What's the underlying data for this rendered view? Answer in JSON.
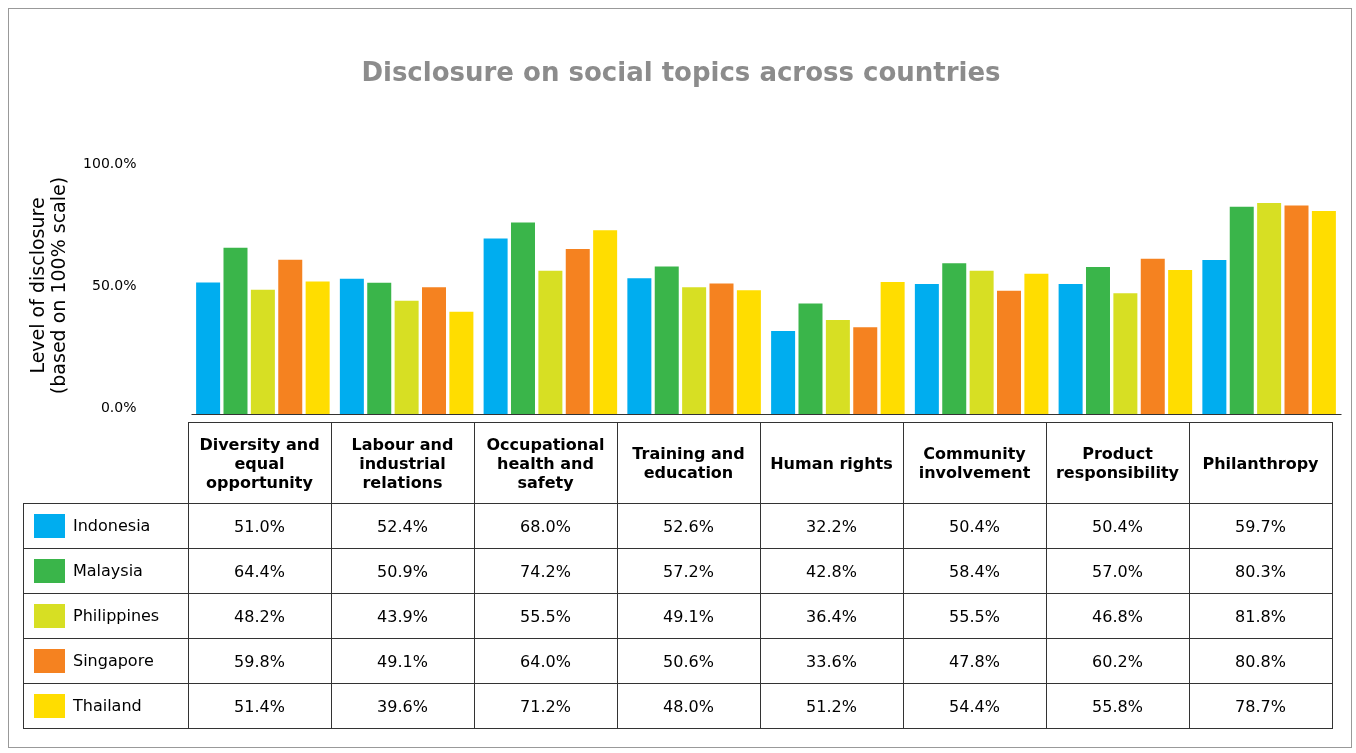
{
  "chart_data": {
    "type": "bar",
    "title": "Disclosure on social topics across countries",
    "ylabel": "Level of disclosure (based on 100% scale)",
    "categories": [
      "Diversity and equal opportunity",
      "Labour and industrial relations",
      "Occupational health and safety",
      "Training and education",
      "Human rights",
      "Community involvement",
      "Product responsibility",
      "Philanthropy"
    ],
    "series": [
      {
        "name": "Indonesia",
        "color": "#00adef",
        "values": [
          51.0,
          52.4,
          68.0,
          52.6,
          32.2,
          50.4,
          50.4,
          59.7
        ],
        "value_labels": [
          "51.0%",
          "52.4%",
          "68.0%",
          "52.6%",
          "32.2%",
          "50.4%",
          "50.4%",
          "59.7%"
        ]
      },
      {
        "name": "Malaysia",
        "color": "#3ab54a",
        "values": [
          64.4,
          50.9,
          74.2,
          57.2,
          42.8,
          58.4,
          57.0,
          80.3
        ],
        "value_labels": [
          "64.4%",
          "50.9%",
          "74.2%",
          "57.2%",
          "42.8%",
          "58.4%",
          "57.0%",
          "80.3%"
        ]
      },
      {
        "name": "Philippines",
        "color": "#d7df23",
        "values": [
          48.2,
          43.9,
          55.5,
          49.1,
          36.4,
          55.5,
          46.8,
          81.8
        ],
        "value_labels": [
          "48.2%",
          "43.9%",
          "55.5%",
          "49.1%",
          "36.4%",
          "55.5%",
          "46.8%",
          "81.8%"
        ]
      },
      {
        "name": "Singapore",
        "color": "#f58220",
        "values": [
          59.8,
          49.1,
          64.0,
          50.6,
          33.6,
          47.8,
          60.2,
          80.8
        ],
        "value_labels": [
          "59.8%",
          "49.1%",
          "64.0%",
          "50.6%",
          "33.6%",
          "47.8%",
          "60.2%",
          "80.8%"
        ]
      },
      {
        "name": "Thailand",
        "color": "#ffdd00",
        "values": [
          51.4,
          39.6,
          71.2,
          48.0,
          51.2,
          54.4,
          55.8,
          78.7
        ],
        "value_labels": [
          "51.4%",
          "39.6%",
          "71.2%",
          "48.0%",
          "51.2%",
          "54.4%",
          "55.8%",
          "78.7%"
        ]
      }
    ],
    "ylim": [
      0,
      100
    ],
    "yticks": [
      {
        "value": 0,
        "label": "0.0%"
      },
      {
        "value": 50,
        "label": "50.0%"
      },
      {
        "value": 100,
        "label": "100.0%"
      }
    ],
    "legend": "bottom"
  }
}
